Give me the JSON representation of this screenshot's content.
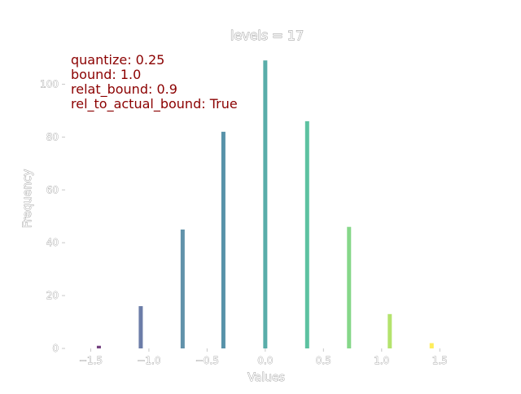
{
  "chart_data": {
    "type": "bar",
    "title": "levels = 17",
    "xlabel": "Values",
    "ylabel": "Frequency",
    "xlim": [
      -1.72,
      1.75
    ],
    "ylim": [
      0,
      114
    ],
    "xticks": [
      -1.5,
      -1.0,
      -0.5,
      0.0,
      0.5,
      1.0,
      1.5
    ],
    "xtick_labels": [
      "−1.5",
      "−1.0",
      "−0.5",
      "0.0",
      "0.5",
      "1.0",
      "1.5"
    ],
    "yticks": [
      0,
      20,
      40,
      60,
      80,
      100
    ],
    "ytick_labels": [
      "0",
      "20",
      "40",
      "60",
      "80",
      "100"
    ],
    "grid": false,
    "bars": [
      {
        "x": -1.43,
        "value": 1,
        "color": "#440154"
      },
      {
        "x": -1.07,
        "value": 16,
        "color": "#3b528b"
      },
      {
        "x": -0.71,
        "value": 45,
        "color": "#2c6d8e"
      },
      {
        "x": -0.36,
        "value": 82,
        "color": "#1f6e8c"
      },
      {
        "x": 0.0,
        "value": 109,
        "color": "#21918c"
      },
      {
        "x": 0.36,
        "value": 86,
        "color": "#27ad81"
      },
      {
        "x": 0.72,
        "value": 46,
        "color": "#5ec962"
      },
      {
        "x": 1.07,
        "value": 13,
        "color": "#9bd93c"
      },
      {
        "x": 1.43,
        "value": 2,
        "color": "#fde725"
      }
    ],
    "annotations": [
      "quantize: 0.25",
      "bound: 1.0",
      "relat_bound: 0.9",
      "rel_to_actual_bound: True"
    ],
    "annotation_color": "#8b0000"
  }
}
